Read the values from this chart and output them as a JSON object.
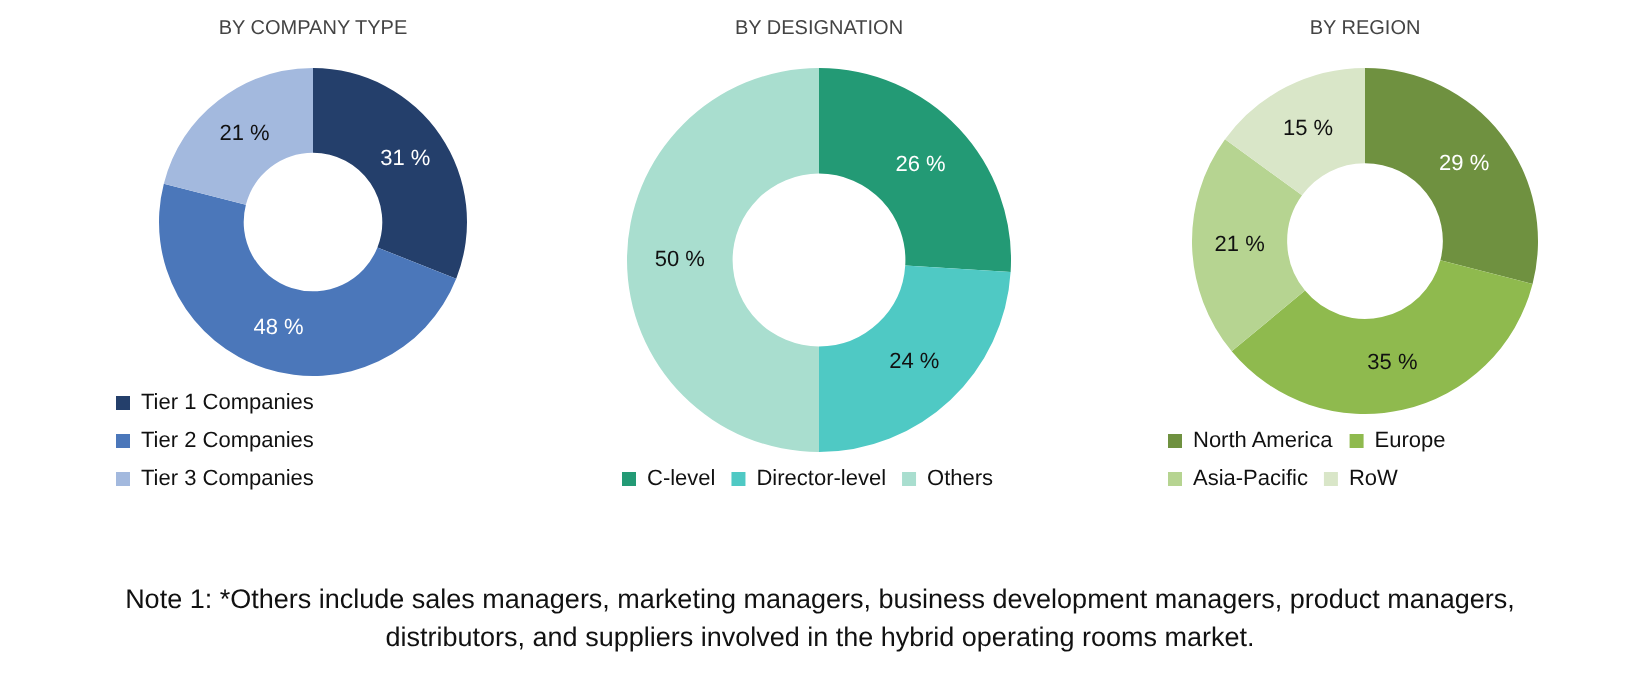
{
  "chart_data": [
    {
      "type": "donut",
      "title": "BY COMPANY TYPE",
      "categories": [
        "Tier 1 Companies",
        "Tier 2 Companies",
        "Tier 3 Companies"
      ],
      "values": [
        31,
        48,
        21
      ],
      "colors": [
        "#243f6b",
        "#4b77ba",
        "#a3b9de"
      ],
      "value_labels": [
        "31 %",
        "48 %",
        "21 %"
      ],
      "legend": "bottom"
    },
    {
      "type": "donut",
      "title": "BY DESIGNATION",
      "categories": [
        "C-level",
        "Director-level",
        "Others"
      ],
      "values": [
        26,
        24,
        50
      ],
      "colors": [
        "#239a75",
        "#4fc9c4",
        "#a9decf"
      ],
      "value_labels": [
        "26 %",
        "24 %",
        "50 %"
      ],
      "legend": "bottom",
      "annotations": [
        "Note 1: *Others include sales managers, marketing managers, business development managers, product managers, distributors, and suppliers involved in the hybrid operating rooms market."
      ]
    },
    {
      "type": "donut",
      "title": "BY REGION",
      "categories": [
        "North America",
        "Europe",
        "Asia-Pacific",
        "RoW"
      ],
      "values": [
        29,
        35,
        21,
        15
      ],
      "colors": [
        "#6f9140",
        "#8fba4e",
        "#b6d491",
        "#d9e6c8"
      ],
      "value_labels": [
        "29 %",
        "35 %",
        "21 %",
        "15 %"
      ],
      "legend": "bottom"
    }
  ]
}
